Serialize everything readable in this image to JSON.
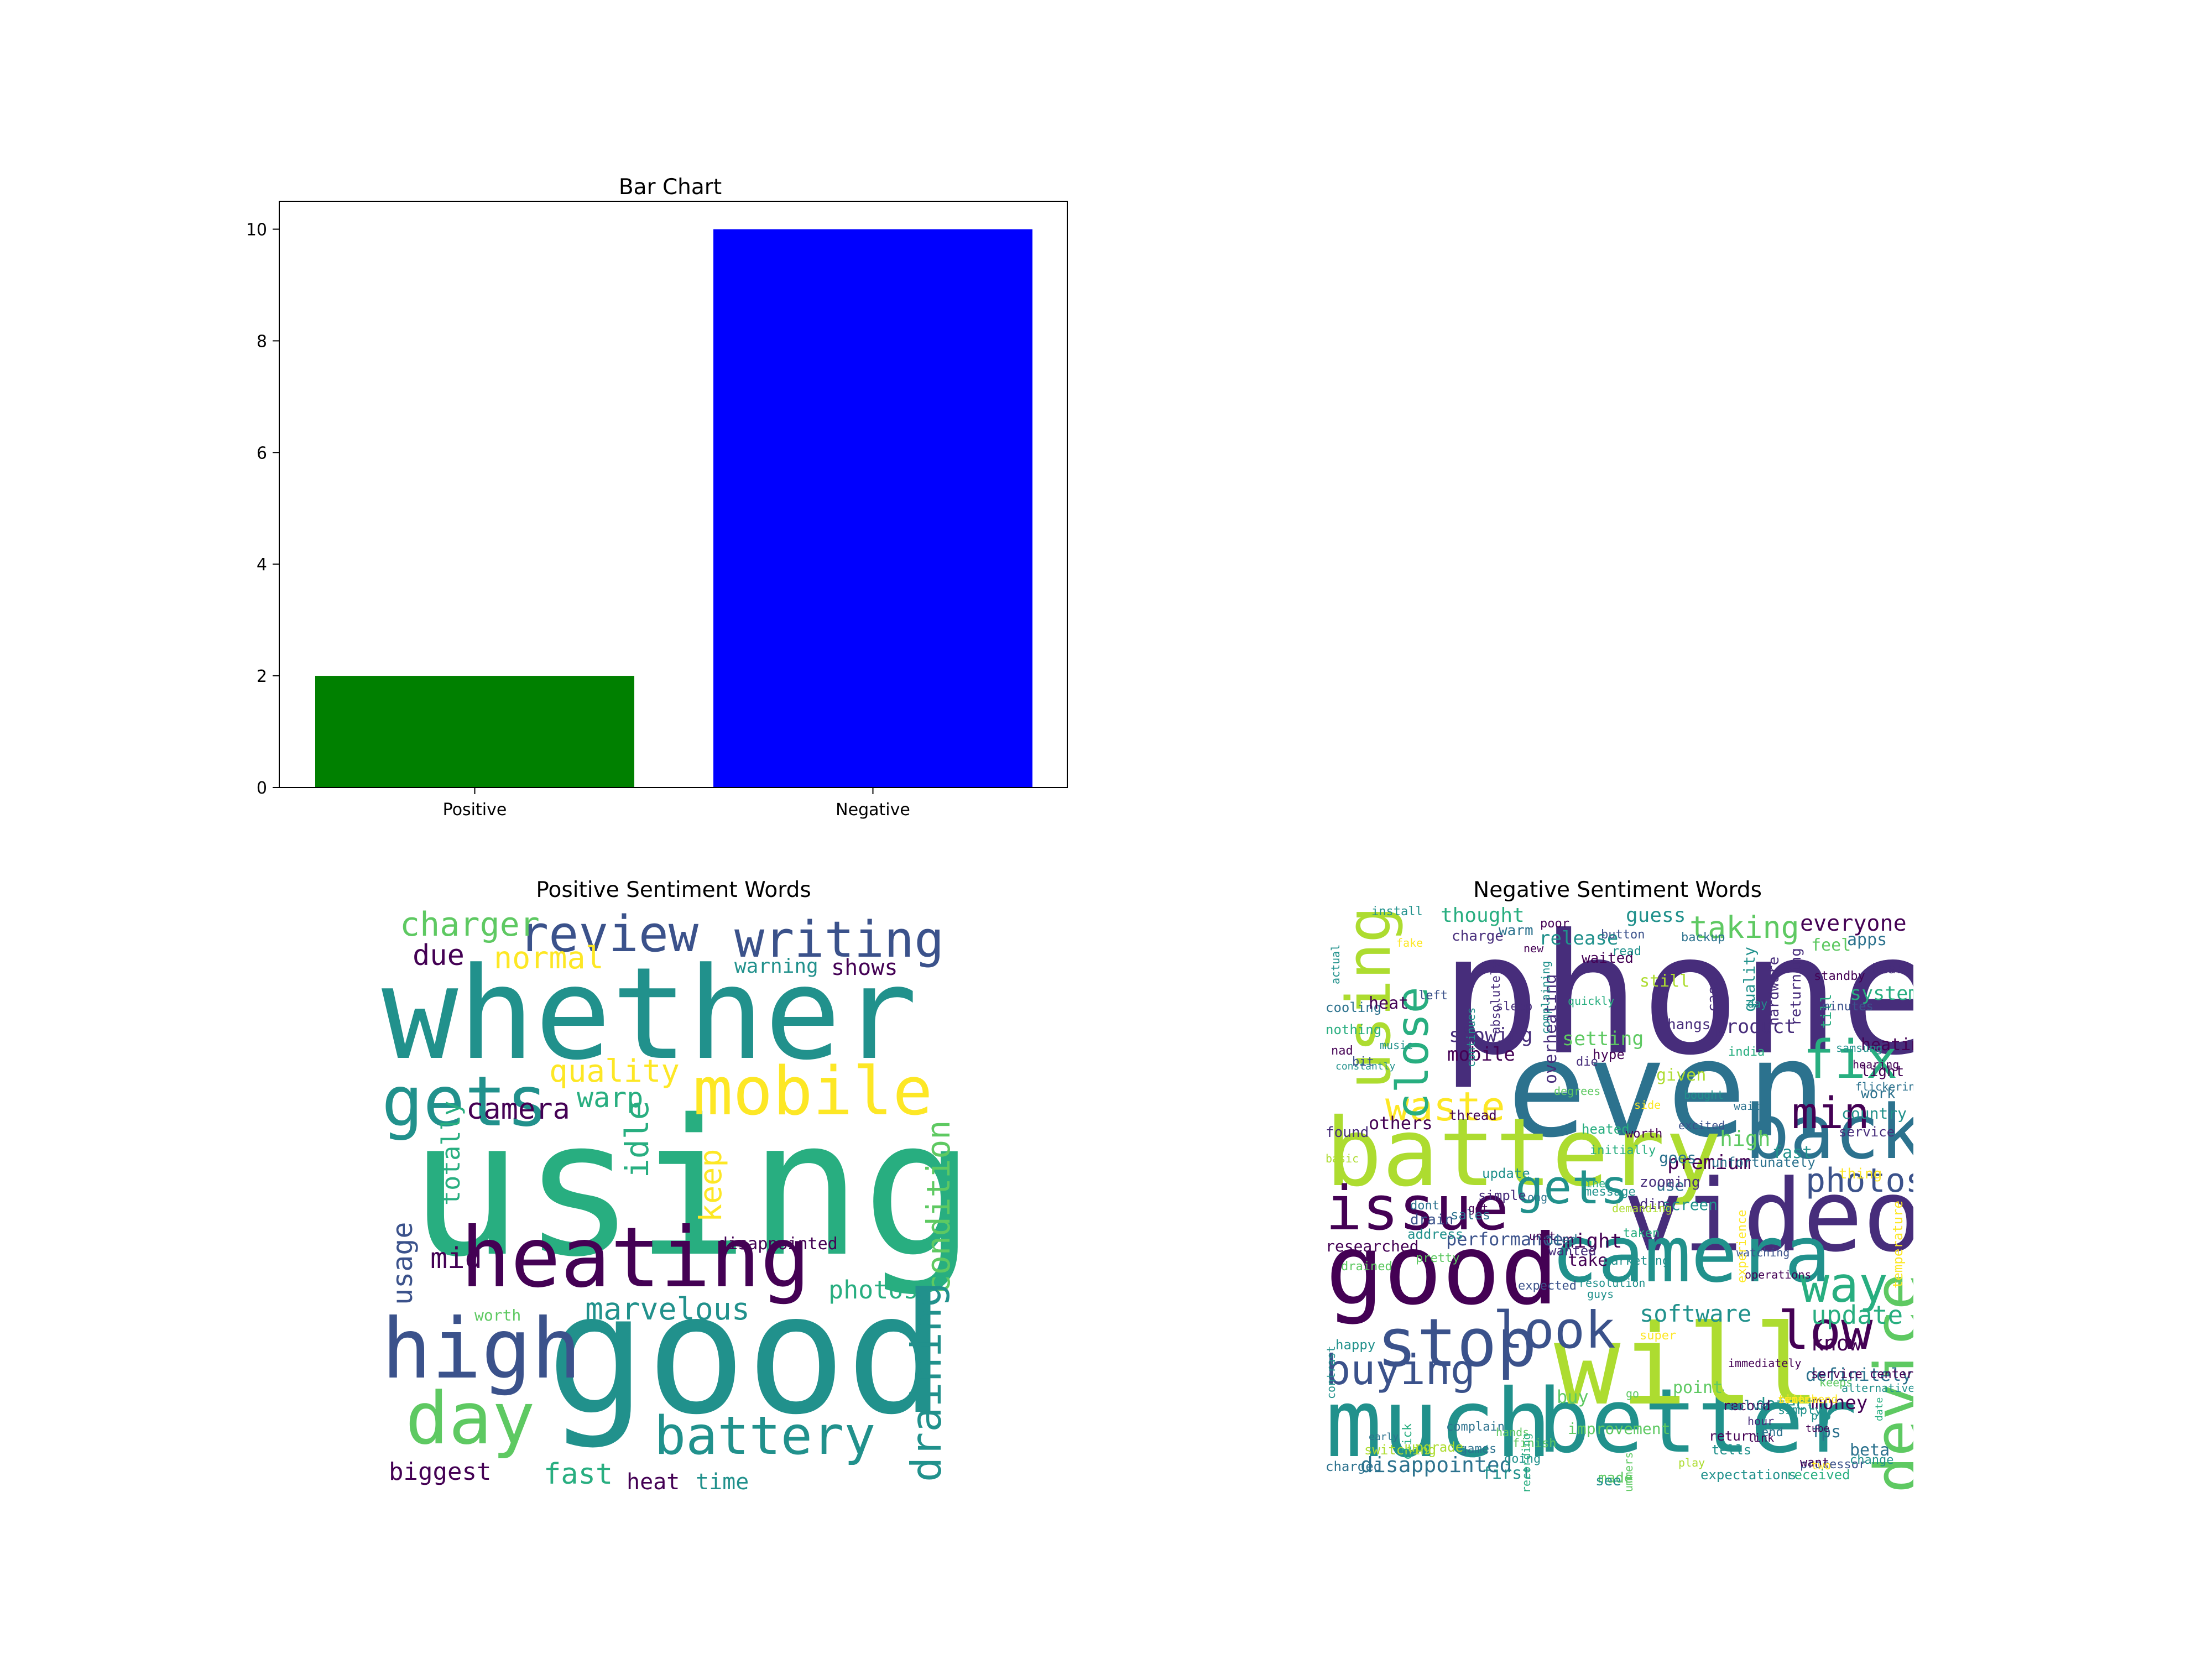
{
  "chart_data": [
    {
      "type": "bar",
      "title": "Bar Chart",
      "categories": [
        "Positive",
        "Negative"
      ],
      "values": [
        2,
        10
      ],
      "colors": [
        "#008000",
        "#0000ff"
      ],
      "ylim": [
        0,
        10.5
      ],
      "yticks": [
        0,
        2,
        4,
        6,
        8,
        10
      ],
      "xlabel": "",
      "ylabel": "",
      "grid": false
    },
    {
      "type": "wordcloud",
      "title": "Positive Sentiment Words",
      "words": [
        "using",
        "good",
        "whether",
        "heating",
        "high",
        "mobile",
        "gets",
        "day",
        "writing",
        "review",
        "battery",
        "condition",
        "draining",
        "marvelous",
        "quality",
        "camera",
        "normal",
        "charger",
        "due",
        "keep",
        "idle",
        "warp",
        "usage",
        "mid",
        "totally",
        "photos",
        "shows",
        "warning",
        "disappointed",
        "fast",
        "heat",
        "time",
        "biggest",
        "worth"
      ]
    },
    {
      "type": "wordcloud",
      "title": "Negative Sentiment Words",
      "words": [
        "phone",
        "even",
        "battery",
        "video",
        "good",
        "much",
        "better",
        "will",
        "camera",
        "back",
        "issue",
        "stop",
        "using",
        "device",
        "way",
        "fix",
        "min",
        "low",
        "look",
        "gets",
        "photos",
        "waste",
        "close",
        "buying",
        "taking",
        "everyone",
        "software",
        "update",
        "know",
        "disappointed",
        "high",
        "premium",
        "showing",
        "mobile",
        "others",
        "release",
        "guess",
        "thought",
        "charge",
        "system",
        "heating",
        "product",
        "setting",
        "performance",
        "might",
        "buy",
        "money",
        "definitely",
        "fps",
        "simply",
        "beta",
        "defect",
        "record",
        "improvement",
        "first",
        "made",
        "expectations",
        "received",
        "processor",
        "change",
        "tells",
        "return",
        "end",
        "games",
        "point",
        "take",
        "wanted",
        "died",
        "temperature",
        "cooling",
        "heat",
        "overheating",
        "install",
        "quality",
        "case",
        "hardware",
        "returning",
        "till",
        "apps",
        "feel",
        "hear",
        "light",
        "work",
        "country",
        "service",
        "fast",
        "thing",
        "goes",
        "unfortunately",
        "use",
        "screen",
        "dint",
        "zooming",
        "message",
        "simple",
        "dont",
        "sales",
        "drain",
        "thread",
        "update",
        "heated",
        "initially",
        "worth",
        "found",
        "constantly",
        "nothing",
        "nad",
        "bit",
        "fake",
        "music",
        "left",
        "warm",
        "poor",
        "button",
        "waited",
        "backup",
        "read",
        "standby",
        "hangs",
        "still",
        "sleep",
        "absolutely",
        "complaining",
        "quickly",
        "hype",
        "die",
        "given",
        "india",
        "switching",
        "early",
        "charged",
        "google",
        "click",
        "upgrade",
        "complain",
        "hands",
        "finish",
        "going",
        "recording",
        "summers",
        "see",
        "solve",
        "play",
        "link",
        "hour",
        "want",
        "tube",
        "pro",
        "date",
        "two",
        "hearing",
        "flickering",
        "side",
        "excited",
        "bought",
        "wait",
        "degrees",
        "line",
        "demanding",
        "address",
        "pretty",
        "marketing",
        "expected",
        "taken",
        "super",
        "happy",
        "contrast",
        "researched",
        "new",
        "actual",
        "continues",
        "day",
        "immediately",
        "watching",
        "operations",
        "keeps",
        "alternatives",
        "samsung",
        "service center",
        "unit",
        "got",
        "minutes",
        "guys",
        "long",
        "experience",
        "resolution",
        "basic",
        "drained",
        "go",
        "sent",
        "recommend",
        "time",
        "switch"
      ]
    }
  ]
}
